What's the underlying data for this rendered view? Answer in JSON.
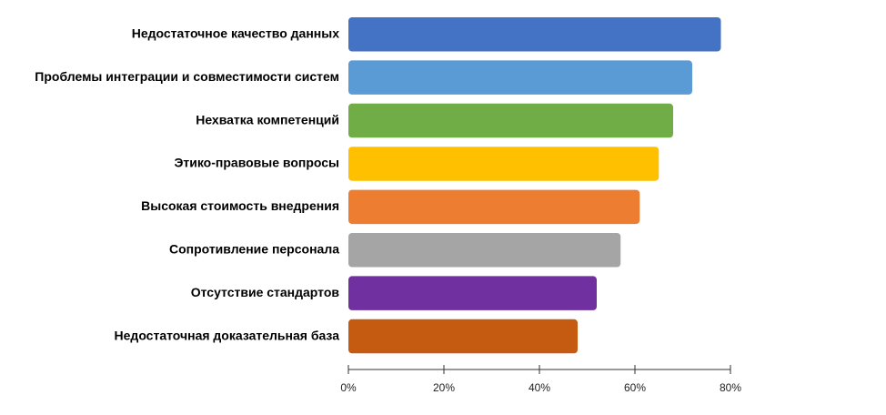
{
  "chart_data": {
    "type": "bar",
    "orientation": "horizontal",
    "categories": [
      "Недостаточное качество данных",
      "Проблемы интеграции и совместимости систем",
      "Нехватка компетенций",
      "Этико-правовые вопросы",
      "Высокая стоимость внедрения",
      "Сопротивление персонала",
      "Отсутствие стандартов",
      "Недостаточная доказательная база"
    ],
    "values": [
      78,
      72,
      68,
      65,
      61,
      57,
      52,
      48
    ],
    "colors": [
      "#4472C4",
      "#5B9BD5",
      "#70AD47",
      "#FFC000",
      "#ED7D31",
      "#A5A5A5",
      "#7030A0",
      "#C55A11"
    ],
    "xlim": [
      0,
      80
    ],
    "xticks": [
      0,
      20,
      40,
      60,
      80
    ],
    "tick_suffix": "%",
    "grid": false,
    "legend": "none"
  }
}
